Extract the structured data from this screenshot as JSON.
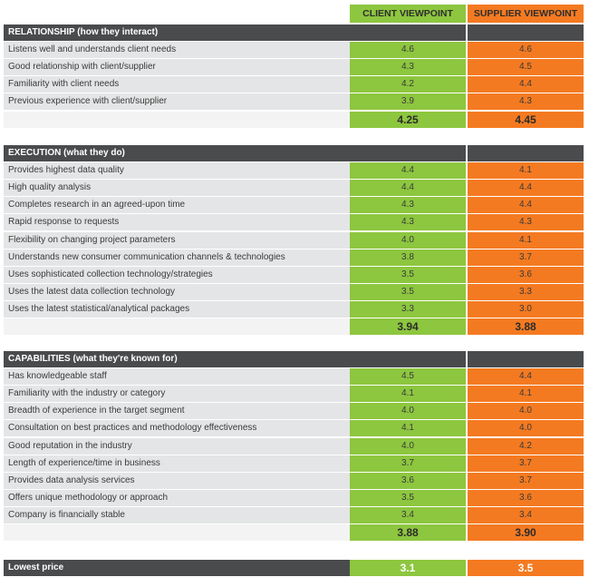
{
  "chart_data": {
    "type": "table",
    "columns": [
      "CLIENT VIEWPOINT",
      "SUPPLIER VIEWPOINT"
    ],
    "sections": [
      {
        "title": "RELATIONSHIP (how they interact)",
        "rows": [
          {
            "label": "Listens well and understands client needs",
            "client": "4.6",
            "supplier": "4.6"
          },
          {
            "label": "Good relationship with client/supplier",
            "client": "4.3",
            "supplier": "4.5"
          },
          {
            "label": "Familiarity with client needs",
            "client": "4.2",
            "supplier": "4.4"
          },
          {
            "label": "Previous experience with client/supplier",
            "client": "3.9",
            "supplier": "4.3"
          }
        ],
        "total": {
          "client": "4.25",
          "supplier": "4.45"
        }
      },
      {
        "title": "EXECUTION (what they do)",
        "rows": [
          {
            "label": "Provides highest data quality",
            "client": "4.4",
            "supplier": "4.1"
          },
          {
            "label": "High quality analysis",
            "client": "4.4",
            "supplier": "4.4"
          },
          {
            "label": "Completes research in an agreed-upon time",
            "client": "4.3",
            "supplier": "4.4"
          },
          {
            "label": "Rapid response to requests",
            "client": "4.3",
            "supplier": "4.3"
          },
          {
            "label": "Flexibility on changing project parameters",
            "client": "4.0",
            "supplier": "4.1"
          },
          {
            "label": "Understands new consumer communication channels & technologies",
            "client": "3.8",
            "supplier": "3.7"
          },
          {
            "label": "Uses sophisticated collection technology/strategies",
            "client": "3.5",
            "supplier": "3.6"
          },
          {
            "label": "Uses the latest data collection technology",
            "client": "3.5",
            "supplier": "3.3"
          },
          {
            "label": "Uses the latest statistical/analytical packages",
            "client": "3.3",
            "supplier": "3.0"
          }
        ],
        "total": {
          "client": "3.94",
          "supplier": "3.88"
        }
      },
      {
        "title": "CAPABILITIES (what they're known for)",
        "rows": [
          {
            "label": "Has knowledgeable staff",
            "client": "4.5",
            "supplier": "4.4"
          },
          {
            "label": "Familiarity with the industry or category",
            "client": "4.1",
            "supplier": "4.1"
          },
          {
            "label": "Breadth of experience in the target segment",
            "client": "4.0",
            "supplier": "4.0"
          },
          {
            "label": "Consultation on best practices and methodology effectiveness",
            "client": "4.1",
            "supplier": "4.0"
          },
          {
            "label": "Good reputation in the industry",
            "client": "4.0",
            "supplier": "4.2"
          },
          {
            "label": "Length of experience/time in business",
            "client": "3.7",
            "supplier": "3.7"
          },
          {
            "label": "Provides data analysis services",
            "client": "3.6",
            "supplier": "3.7"
          },
          {
            "label": "Offers unique methodology or approach",
            "client": "3.5",
            "supplier": "3.6"
          },
          {
            "label": "Company is financially stable",
            "client": "3.4",
            "supplier": "3.4"
          }
        ],
        "total": {
          "client": "3.88",
          "supplier": "3.90"
        }
      }
    ],
    "final": {
      "label": "Lowest price",
      "client": "3.1",
      "supplier": "3.5"
    },
    "colors": {
      "client": "#8dc63f",
      "supplier": "#f47a21",
      "header_bar": "#4a4b4d",
      "row_shade": "#e4e5e6"
    }
  }
}
